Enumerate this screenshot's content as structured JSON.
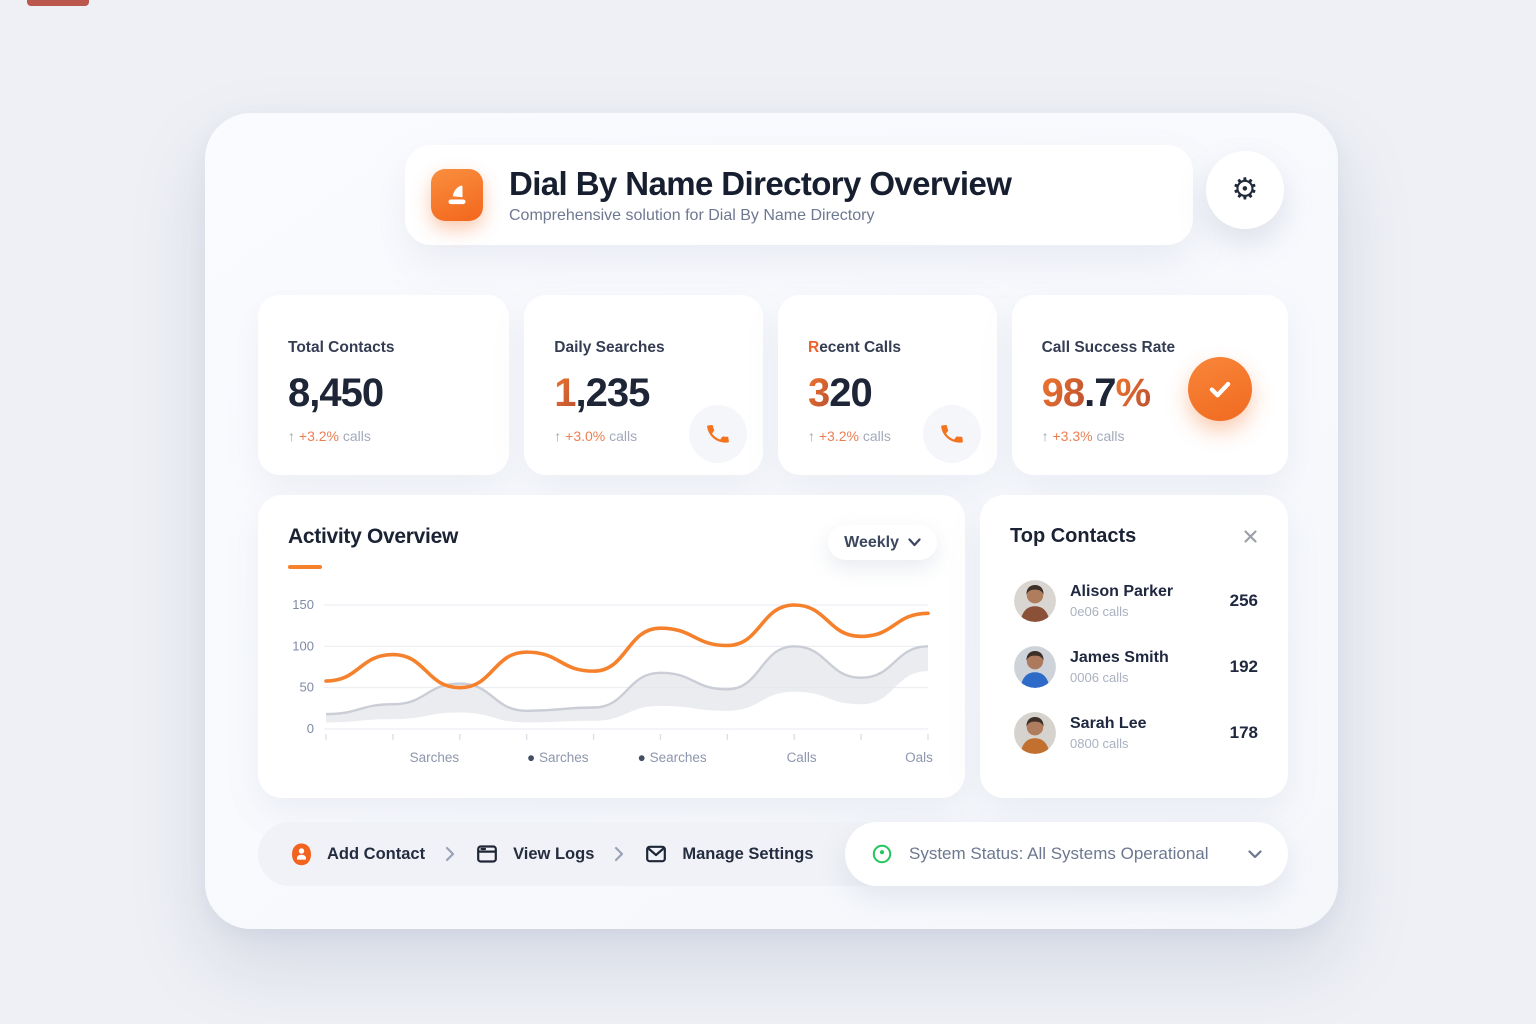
{
  "page": {
    "background": "#eef0f5",
    "accent_orange": "#f5812c",
    "status_green": "#22c55e"
  },
  "header": {
    "title": "Dial By Name Directory Overview",
    "subtitle": "Comprehensive solution for Dial By Name Directory"
  },
  "stats": {
    "cards": [
      {
        "label_accent": "",
        "label": "Total Contacts",
        "value_accent": "",
        "value": "8,450",
        "value_suffix": "",
        "trend_prefix": "↑",
        "trend_accent": " +3.2%",
        "trend": " calls",
        "icon": "none"
      },
      {
        "label_accent": "",
        "label": "Daily Searches",
        "value_accent": "1",
        "value": ",235",
        "value_suffix": "",
        "trend_prefix": "↑",
        "trend_accent": " +3.0%",
        "trend": " calls",
        "icon": "phone"
      },
      {
        "label_accent": "R",
        "label": "ecent Calls",
        "value_accent": "3",
        "value": "20",
        "value_suffix": "",
        "trend_prefix": "↑",
        "trend_accent": " +3.2%",
        "trend": " calls",
        "icon": "phone"
      },
      {
        "label_accent": "",
        "label": "Call Success Rate",
        "value_accent": "98",
        "value": ".7",
        "value_suffix": "%",
        "trend_prefix": "↑",
        "trend_accent": " +3.3%",
        "trend": " calls",
        "icon": "check"
      }
    ]
  },
  "activity": {
    "title": "Activity Overview",
    "range_selector": "Weekly"
  },
  "chart_data": {
    "type": "line",
    "title": "Activity Overview",
    "xlabel": "",
    "ylabel": "",
    "ylim": [
      0,
      150
    ],
    "y_ticks": [
      150,
      100,
      50,
      0
    ],
    "grid": true,
    "legend_position": "none",
    "x_labels": [
      {
        "text": "Sarches",
        "dot": false,
        "pos": 0.18
      },
      {
        "text": "Sarches",
        "dot": true,
        "pos": 0.385
      },
      {
        "text": "Searches",
        "dot": true,
        "pos": 0.575
      },
      {
        "text": "Calls",
        "dot": false,
        "pos": 0.79
      },
      {
        "text": "Oals",
        "dot": false,
        "pos": 0.985
      }
    ],
    "series": [
      {
        "name": "activity-line",
        "type": "line",
        "color": "#f5812c",
        "values": [
          58,
          90,
          50,
          93,
          70,
          122,
          101,
          150,
          112,
          140
        ]
      },
      {
        "name": "activity-band",
        "type": "band",
        "fill": "#e6e7eb",
        "stroke": "#c7c9d3",
        "upper": [
          18,
          30,
          55,
          22,
          26,
          68,
          48,
          100,
          62,
          100
        ],
        "lower": [
          8,
          12,
          20,
          8,
          10,
          28,
          22,
          45,
          30,
          70
        ]
      }
    ]
  },
  "top_contacts": {
    "title": "Top Contacts",
    "items": [
      {
        "name": "Alison Parker",
        "sub": "0e06 calls",
        "count": "256",
        "avatar_style": "--bg:#d9d5d0;--skin:#b07c5e;--shirt:#8a5138"
      },
      {
        "name": "James Smith",
        "sub": "0006 calls",
        "count": "192",
        "avatar_style": "--bg:#ced3da;--skin:#ad7a5d;--shirt:#2e6bc9"
      },
      {
        "name": "Sarah Lee",
        "sub": "0800 calls",
        "count": "178",
        "avatar_style": "--bg:#d6d2cd;--skin:#b07c5e;--shirt:#c2702f"
      }
    ]
  },
  "footer": {
    "actions": [
      {
        "label": "Add Contact"
      },
      {
        "label": "View Logs"
      },
      {
        "label": "Manage Settings"
      }
    ],
    "status_label": "System Status:  All Systems Operational"
  }
}
